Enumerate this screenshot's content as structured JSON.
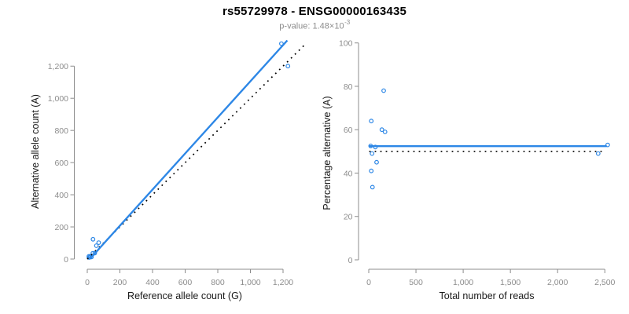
{
  "header": {
    "title": "rs55729978 - ENSG00000163435",
    "pvalue_prefix": "p-value: 1.48×10",
    "pvalue_exponent": "-3"
  },
  "style": {
    "accent_blue": "#2D87E6",
    "axis_gray": "#8C8C8C",
    "tick_label_gray": "#8C8C8C",
    "axis_title_color": "#1A1A1A",
    "subtitle_gray": "#8C8C8C",
    "dotted_black": "#000000"
  },
  "chart_data": [
    {
      "type": "scatter",
      "panel": "allele-counts",
      "xlabel": "Reference allele count (G)",
      "ylabel": "Alternative allele count (A)",
      "xlim": [
        0,
        1350
      ],
      "ylim": [
        0,
        1400
      ],
      "x_ticks": [
        0,
        200,
        400,
        600,
        800,
        1000,
        1200
      ],
      "y_ticks": [
        0,
        200,
        400,
        600,
        800,
        1000,
        1200
      ],
      "grid": false,
      "legend": null,
      "points": [
        [
          10,
          10
        ],
        [
          10,
          17
        ],
        [
          16,
          11
        ],
        [
          18,
          17
        ],
        [
          26,
          13
        ],
        [
          34,
          36
        ],
        [
          46,
          37
        ],
        [
          56,
          83
        ],
        [
          70,
          102
        ],
        [
          35,
          123
        ],
        [
          1190,
          1340
        ],
        [
          1230,
          1200
        ]
      ],
      "lines": [
        {
          "name": "identity-line",
          "style": "dotted",
          "color": "#000000",
          "x1": 0,
          "y1": 0,
          "x2": 1330,
          "y2": 1330
        },
        {
          "name": "fit-line",
          "style": "solid",
          "color": "#2D87E6",
          "x1": 18,
          "y1": 3,
          "x2": 1226,
          "y2": 1360
        }
      ]
    },
    {
      "type": "scatter",
      "panel": "percentage-vs-reads",
      "xlabel": "Total number of reads",
      "ylabel": "Percentage alternative (A)",
      "xlim": [
        0,
        2600
      ],
      "ylim": [
        0,
        100
      ],
      "x_ticks": [
        0,
        500,
        1000,
        1500,
        2000,
        2500
      ],
      "y_ticks": [
        0,
        20,
        40,
        60,
        80,
        100
      ],
      "grid": false,
      "legend": null,
      "points": [
        [
          20,
          52.5
        ],
        [
          27,
          64
        ],
        [
          27,
          41
        ],
        [
          35,
          49
        ],
        [
          39,
          33.5
        ],
        [
          70,
          52
        ],
        [
          83,
          45
        ],
        [
          139,
          60
        ],
        [
          158,
          78
        ],
        [
          172,
          59
        ],
        [
          2430,
          49
        ],
        [
          2530,
          53
        ]
      ],
      "lines": [
        {
          "name": "null-line",
          "style": "dotted",
          "color": "#000000",
          "x1": 5,
          "y1": 50,
          "x2": 2500,
          "y2": 50
        },
        {
          "name": "fit-line",
          "style": "solid",
          "color": "#2D87E6",
          "x1": 5,
          "y1": 52.4,
          "x2": 2520,
          "y2": 52.4
        }
      ]
    }
  ]
}
